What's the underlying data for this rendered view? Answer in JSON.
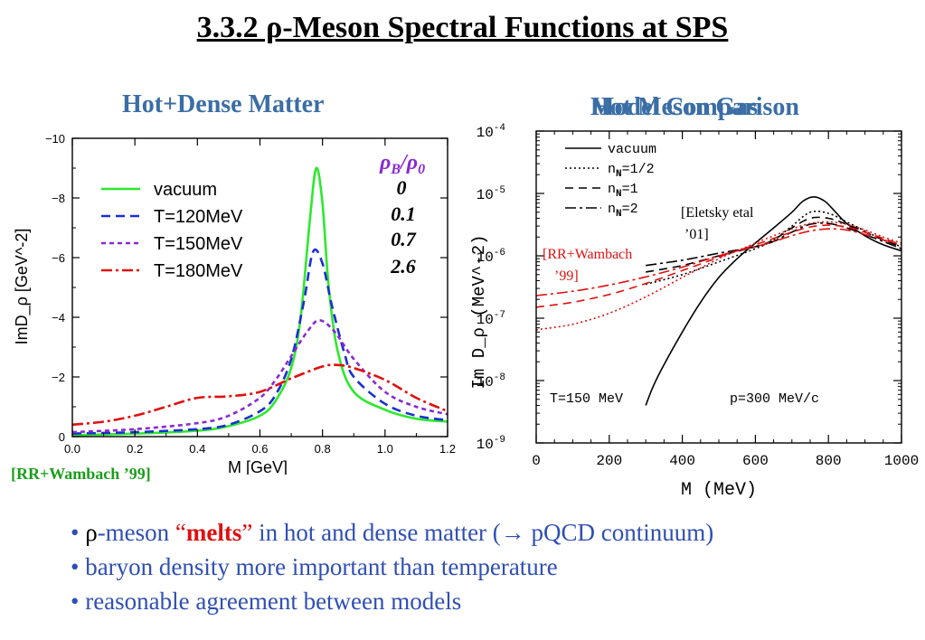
{
  "title": "3.3.2 ρ-Meson Spectral Functions at SPS",
  "left_panel": {
    "heading": "Hot+Dense Matter",
    "citation": "[RR+Wambach ’99]",
    "density_header_rho": "ρ",
    "density_header_sub_B": "B",
    "density_header_slash": "/",
    "density_header_sub_0": "0",
    "density_values": [
      "0",
      "0.1",
      "0.7",
      "2.6"
    ]
  },
  "right_panel": {
    "heading_a": "Hot Meson Gas",
    "heading_b": "Model Comparison",
    "label_eletsky_1": "[Eletsky etal",
    "label_eletsky_2": "’01]",
    "label_rrw_1": "[RR+Wambach",
    "label_rrw_2": "’99]",
    "label_temp": "T=150 MeV",
    "label_mom": "p=300 MeV/c"
  },
  "chart_data": [
    {
      "type": "line",
      "xlabel": "M [GeV]",
      "ylabel": "ImD_ρ [GeV^-2]",
      "xlim": [
        0.0,
        1.2
      ],
      "ylim": [
        0,
        -10
      ],
      "x_ticks": [
        "0.0",
        "0.2",
        "0.4",
        "0.6",
        "0.8",
        "1.0",
        "1.2"
      ],
      "y_ticks": [
        "0",
        "−2",
        "−4",
        "−6",
        "−8",
        "−10"
      ],
      "legend": "upper-left",
      "series": [
        {
          "name": "vacuum",
          "color": "#2ee82e",
          "dash": "solid",
          "x": [
            0.0,
            0.2,
            0.4,
            0.5,
            0.6,
            0.65,
            0.7,
            0.73,
            0.76,
            0.78,
            0.8,
            0.82,
            0.85,
            0.9,
            1.0,
            1.1,
            1.2
          ],
          "y": [
            -0.05,
            -0.1,
            -0.2,
            -0.35,
            -0.7,
            -1.2,
            -2.3,
            -4.0,
            -7.3,
            -9.0,
            -7.8,
            -5.0,
            -2.8,
            -1.5,
            -0.9,
            -0.6,
            -0.5
          ]
        },
        {
          "name": "T=120MeV",
          "color": "#1a2fd0",
          "dash": "long",
          "x": [
            0.0,
            0.2,
            0.4,
            0.5,
            0.6,
            0.65,
            0.7,
            0.74,
            0.77,
            0.8,
            0.83,
            0.87,
            0.9,
            1.0,
            1.1,
            1.2
          ],
          "y": [
            -0.1,
            -0.15,
            -0.25,
            -0.4,
            -0.85,
            -1.4,
            -2.6,
            -4.5,
            -6.2,
            -5.8,
            -4.4,
            -2.8,
            -2.0,
            -1.1,
            -0.7,
            -0.55
          ]
        },
        {
          "name": "T=150MeV",
          "color": "#8a2ad0",
          "dash": "short",
          "x": [
            0.0,
            0.2,
            0.4,
            0.5,
            0.6,
            0.65,
            0.7,
            0.75,
            0.79,
            0.84,
            0.9,
            1.0,
            1.1,
            1.2
          ],
          "y": [
            -0.15,
            -0.25,
            -0.45,
            -0.7,
            -1.3,
            -1.9,
            -2.7,
            -3.5,
            -3.9,
            -3.5,
            -2.6,
            -1.5,
            -1.0,
            -0.75
          ]
        },
        {
          "name": "T=180MeV",
          "color": "#e01010",
          "dash": "dashdot",
          "x": [
            0.0,
            0.1,
            0.2,
            0.3,
            0.4,
            0.5,
            0.6,
            0.7,
            0.8,
            0.85,
            0.9,
            1.0,
            1.1,
            1.2
          ],
          "y": [
            -0.4,
            -0.5,
            -0.7,
            -1.0,
            -1.3,
            -1.35,
            -1.5,
            -1.95,
            -2.35,
            -2.4,
            -2.3,
            -1.9,
            -1.3,
            -0.85
          ]
        }
      ]
    },
    {
      "type": "line",
      "xlabel": "M (MeV)",
      "ylabel": "Im D_ρ (MeV^-2)",
      "xlim": [
        0,
        1000
      ],
      "ylim": [
        1e-09,
        0.0001
      ],
      "y_scale": "log",
      "x_ticks": [
        "0",
        "200",
        "400",
        "600",
        "800",
        "1000"
      ],
      "y_ticks": [
        "10^-9",
        "10^-8",
        "10^-7",
        "10^-6",
        "10^-5",
        "10^-4"
      ],
      "legend": "upper-left",
      "series": [
        {
          "name": "vacuum",
          "color": "#000000",
          "dash": "solid",
          "x": [
            300,
            320,
            350,
            400,
            450,
            500,
            550,
            600,
            650,
            700,
            730,
            760,
            790,
            820,
            850,
            900,
            950,
            1000
          ],
          "y": [
            4e-09,
            8e-09,
            1.8e-08,
            6e-08,
            1.8e-07,
            4.5e-07,
            9e-07,
            1.6e-06,
            2.8e-06,
            5e-06,
            7.5e-06,
            8.8e-06,
            7.5e-06,
            5e-06,
            3.3e-06,
            2.1e-06,
            1.5e-06,
            1.2e-06
          ]
        },
        {
          "name": "n_N=1/2",
          "color": "#000000",
          "dash": "dotted",
          "x": [
            300,
            400,
            500,
            600,
            650,
            700,
            750,
            800,
            850,
            900,
            950,
            1000
          ],
          "y": [
            3.5e-07,
            5e-07,
            8e-07,
            1.3e-06,
            1.8e-06,
            3e-06,
            5e-06,
            4.8e-06,
            3.5e-06,
            2.5e-06,
            1.8e-06,
            1.4e-06
          ]
        },
        {
          "name": "n_N=1",
          "color": "#000000",
          "dash": "dashed",
          "x": [
            300,
            400,
            500,
            600,
            650,
            700,
            750,
            800,
            850,
            900,
            950,
            1000
          ],
          "y": [
            5.5e-07,
            7e-07,
            1e-06,
            1.4e-06,
            1.8e-06,
            2.8e-06,
            4e-06,
            4e-06,
            3.2e-06,
            2.4e-06,
            1.8e-06,
            1.4e-06
          ]
        },
        {
          "name": "n_N=2",
          "color": "#000000",
          "dash": "dashdot",
          "x": [
            300,
            400,
            500,
            600,
            650,
            700,
            750,
            800,
            850,
            900,
            950,
            1000
          ],
          "y": [
            7e-07,
            8.5e-07,
            1.1e-06,
            1.4e-06,
            1.7e-06,
            2.4e-06,
            3.2e-06,
            3.3e-06,
            2.8e-06,
            2.2e-06,
            1.7e-06,
            1.3e-06
          ]
        },
        {
          "color": "#e01010",
          "dash": "dotted",
          "x": [
            0,
            100,
            200,
            300,
            400,
            500,
            550,
            600,
            650,
            700,
            750,
            800,
            850,
            900,
            950,
            1000
          ],
          "y": [
            6.5e-08,
            8e-08,
            1.2e-07,
            2.2e-07,
            4.5e-07,
            9e-07,
            1.2e-06,
            1.6e-06,
            2.1e-06,
            2.7e-06,
            3.3e-06,
            3.5e-06,
            3.2e-06,
            2.6e-06,
            2e-06,
            1.6e-06
          ]
        },
        {
          "color": "#e01010",
          "dash": "dashed",
          "x": [
            0,
            100,
            200,
            300,
            400,
            500,
            550,
            600,
            650,
            700,
            750,
            800,
            850,
            900,
            950,
            1000
          ],
          "y": [
            1.5e-07,
            1.8e-07,
            2.4e-07,
            3.6e-07,
            5.8e-07,
            9.5e-07,
            1.2e-06,
            1.5e-06,
            1.9e-06,
            2.4e-06,
            2.9e-06,
            3.1e-06,
            2.9e-06,
            2.4e-06,
            1.9e-06,
            1.5e-06
          ]
        },
        {
          "color": "#e01010",
          "dash": "dashdot",
          "x": [
            0,
            100,
            200,
            300,
            400,
            500,
            550,
            600,
            650,
            700,
            750,
            800,
            850,
            900,
            950,
            1000
          ],
          "y": [
            2.3e-07,
            2.7e-07,
            3.4e-07,
            4.6e-07,
            6.6e-07,
            1e-06,
            1.2e-06,
            1.4e-06,
            1.7e-06,
            2.1e-06,
            2.5e-06,
            2.7e-06,
            2.6e-06,
            2.2e-06,
            1.8e-06,
            1.5e-06
          ]
        }
      ]
    }
  ],
  "bullets": {
    "b1_dot": "•",
    "b1_rho": "ρ",
    "b1_pre": "-meson ",
    "b1_q_open": "“",
    "b1_melts": "melts",
    "b1_q_close": "”",
    "b1_post": "  in hot and dense matter (→ pQCD continuum)",
    "b2": "• baryon density more important than temperature",
    "b3": "• reasonable agreement between models"
  },
  "colors": {
    "heading": "#3a6ea5",
    "bullet_text": "#2f4fb3",
    "emphasis": "#e01010",
    "citation_green": "#1a9e1a",
    "density_purple": "#8a2ad0"
  }
}
